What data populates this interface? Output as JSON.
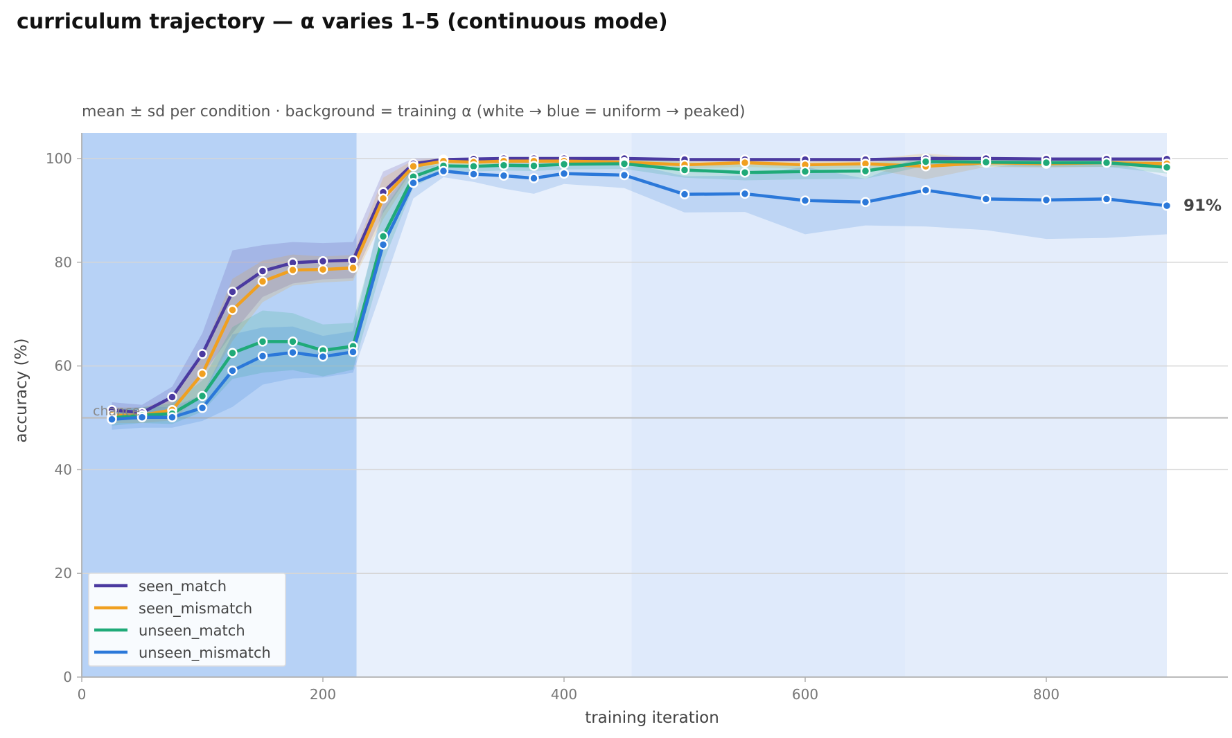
{
  "chart_data": {
    "type": "line",
    "title": "curriculum trajectory — α varies 1–5 (continuous mode)",
    "subtitle": "mean ± sd per condition · background = training α (white → blue = uniform → peaked)",
    "xlabel": "training iteration",
    "ylabel": "accuracy (%)",
    "xlim": [
      0,
      950
    ],
    "ylim": [
      0,
      105
    ],
    "x_ticks": [
      0,
      200,
      400,
      600,
      800
    ],
    "y_ticks": [
      0,
      20,
      40,
      60,
      80,
      100
    ],
    "grid": "horizontal",
    "legend_position": "lower-left",
    "chance_line": {
      "y": 50,
      "label": "chance"
    },
    "end_annotation": {
      "series": "unseen_mismatch",
      "x": 900,
      "y": 91,
      "label": "91%"
    },
    "background_alpha_bands": [
      {
        "x0": 0,
        "x1": 228,
        "color": "#b7d2f6"
      },
      {
        "x0": 228,
        "x1": 456,
        "color": "#e8f0fc"
      },
      {
        "x0": 456,
        "x1": 683,
        "color": "#dfeafb"
      },
      {
        "x0": 683,
        "x1": 900,
        "color": "#e4edfb"
      }
    ],
    "x": [
      25,
      50,
      75,
      100,
      125,
      150,
      175,
      200,
      225,
      250,
      275,
      300,
      325,
      350,
      375,
      400,
      450,
      500,
      550,
      600,
      650,
      700,
      750,
      800,
      850,
      900
    ],
    "series": [
      {
        "name": "seen_match",
        "color": "#4b3aa0",
        "values": [
          51.5,
          51,
          54,
          62.3,
          74.3,
          78.3,
          79.9,
          80.2,
          80.4,
          93.5,
          99,
          99.8,
          99.9,
          100,
          100,
          100,
          100,
          99.8,
          99.8,
          99.8,
          99.8,
          100,
          100,
          99.9,
          99.9,
          99.9
        ],
        "sd": [
          1.5,
          1.5,
          2,
          4,
          8,
          5,
          4,
          3.5,
          3.5,
          4,
          1,
          0.3,
          0.3,
          0.3,
          0.3,
          0.3,
          0.3,
          0.3,
          0.3,
          0.3,
          0.3,
          0.3,
          0.3,
          0.3,
          0.3,
          0.3
        ]
      },
      {
        "name": "seen_mismatch",
        "color": "#f0a020",
        "values": [
          50.5,
          50.5,
          51.5,
          58.5,
          70.8,
          76.3,
          78.5,
          78.6,
          78.9,
          92.3,
          98.5,
          99.5,
          99.3,
          99.5,
          99.5,
          99.5,
          99.3,
          98.8,
          99.2,
          98.8,
          99,
          98.5,
          99.2,
          99,
          99.2,
          99
        ],
        "sd": [
          1.5,
          1.5,
          2,
          4,
          6,
          4,
          3,
          2.5,
          2.5,
          4,
          1.2,
          0.5,
          0.5,
          0.5,
          0.5,
          0.5,
          0.5,
          0.8,
          0.8,
          0.8,
          0.8,
          2.5,
          0.8,
          0.8,
          0.8,
          0.8
        ]
      },
      {
        "name": "unseen_match",
        "color": "#1faa78",
        "values": [
          50,
          50.5,
          50.8,
          54.2,
          62.5,
          64.7,
          64.7,
          63,
          63.8,
          85,
          96.5,
          98.6,
          98.5,
          98.7,
          98.6,
          98.9,
          99,
          97.8,
          97.3,
          97.5,
          97.6,
          99.4,
          99.3,
          99.2,
          99.2,
          98.3
        ],
        "sd": [
          1.5,
          1.5,
          2,
          3,
          5,
          6,
          5.5,
          5,
          4.5,
          5,
          2,
          1,
          1,
          1,
          1,
          1,
          1,
          1.5,
          1.5,
          1.5,
          1.5,
          0.8,
          0.8,
          0.8,
          0.8,
          1.2
        ]
      },
      {
        "name": "unseen_mismatch",
        "color": "#2b78d9",
        "values": [
          49.7,
          50.1,
          50.1,
          51.9,
          59.1,
          61.9,
          62.6,
          61.8,
          62.7,
          83.4,
          95.3,
          97.6,
          97,
          96.7,
          96.2,
          97.1,
          96.8,
          93.1,
          93.2,
          91.9,
          91.6,
          93.9,
          92.2,
          92,
          92.2,
          90.9
        ],
        "sd": [
          2,
          2,
          2,
          2.5,
          7,
          5.5,
          5,
          4,
          4,
          8,
          3,
          1.2,
          1.5,
          2.5,
          3,
          2,
          2.5,
          3.5,
          3.5,
          6.5,
          4.5,
          7,
          6,
          7.5,
          7.5,
          5.5
        ]
      }
    ]
  }
}
